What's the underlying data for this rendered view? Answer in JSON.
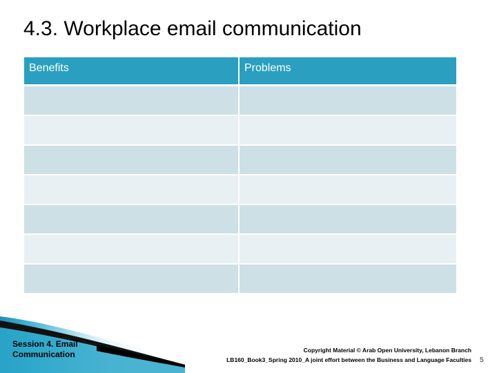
{
  "slide": {
    "title": "4.3. Workplace email communication"
  },
  "table": {
    "headers": [
      "Benefits",
      "Problems"
    ],
    "rows": [
      [
        "",
        ""
      ],
      [
        "",
        ""
      ],
      [
        "",
        ""
      ],
      [
        "",
        ""
      ],
      [
        "",
        ""
      ],
      [
        "",
        ""
      ],
      [
        "",
        ""
      ]
    ]
  },
  "footer": {
    "session_line1": "Session 4. Email",
    "session_line2": "Communication",
    "copyright_line1": "Copyright Material © Arab Open University, Lebanon Branch",
    "copyright_line2": "LB160_Book3_Spring 2010_A joint effort between the Business and Language Faculties",
    "page_number": "5"
  },
  "colors": {
    "header_bg": "#2a9fc0",
    "row_odd": "#cde0e6",
    "row_even": "#e8f0f3",
    "swoosh_blue": "#2aa6c9"
  }
}
